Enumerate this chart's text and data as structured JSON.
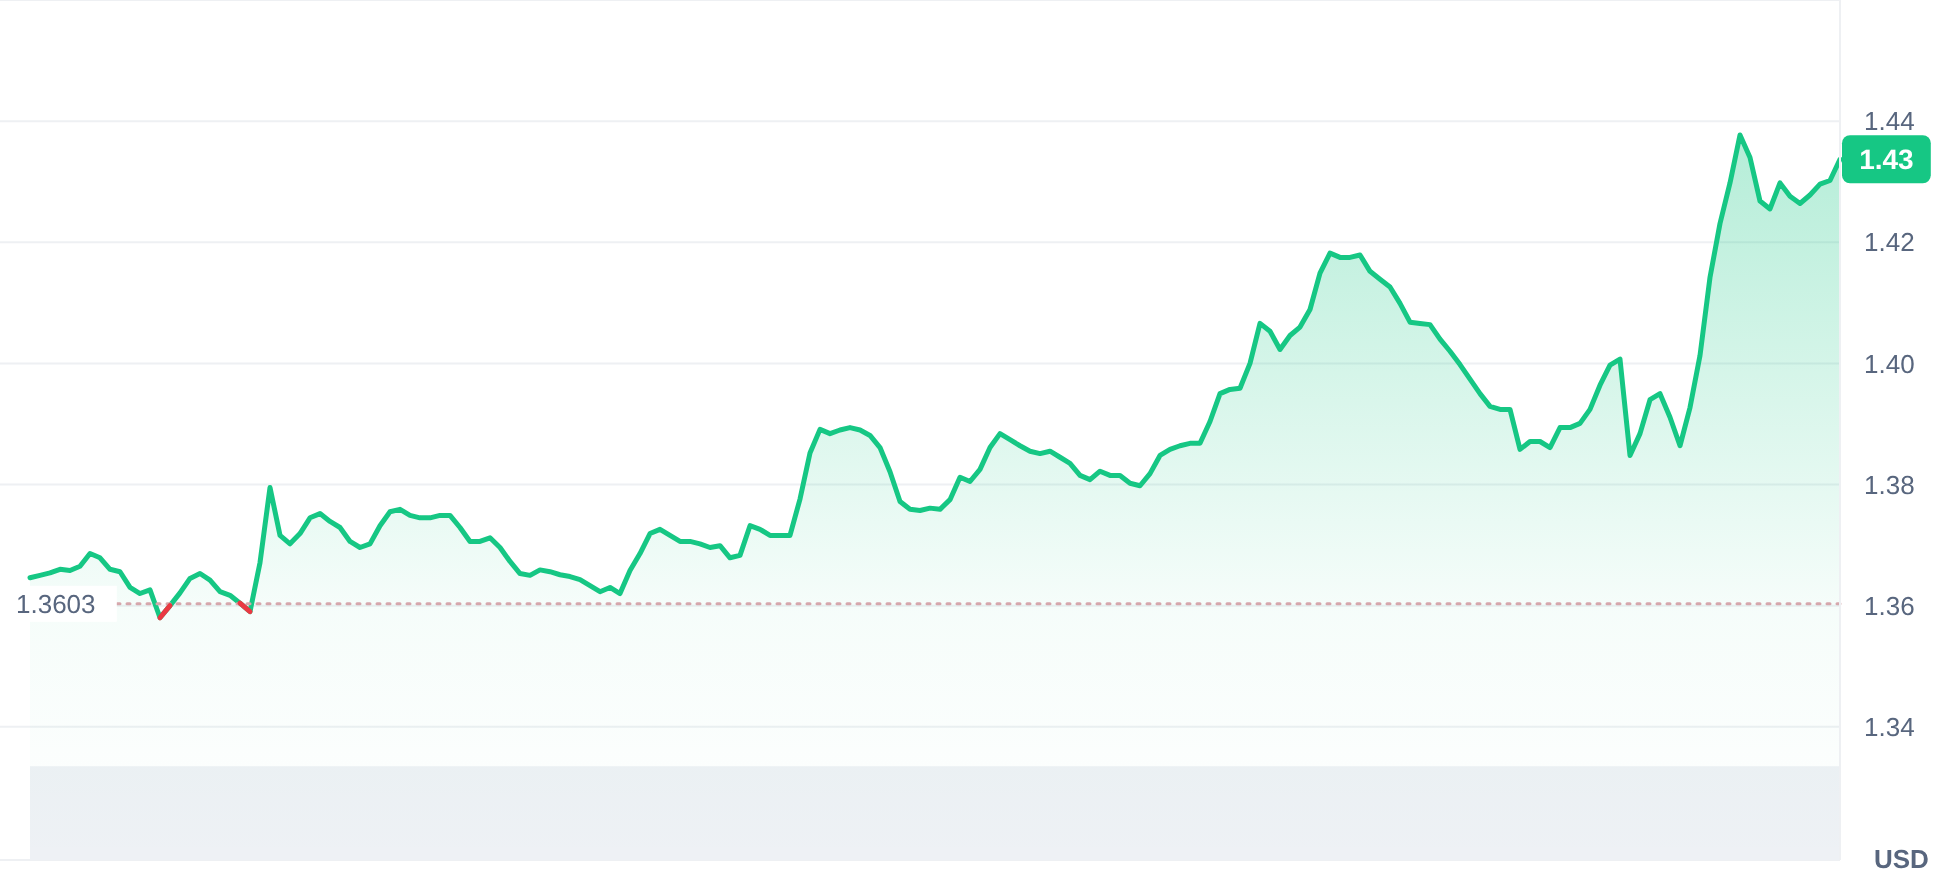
{
  "chart_data": {
    "type": "area",
    "ylabel": "USD",
    "categories": [
      null,
      null,
      null,
      null,
      null,
      null,
      null,
      null,
      null,
      null,
      null,
      null,
      null,
      null,
      null,
      null,
      null,
      null,
      null,
      null,
      null,
      null,
      null,
      null,
      null,
      null,
      null,
      null,
      null,
      null,
      null,
      null,
      null,
      null,
      null,
      null,
      null,
      null,
      null,
      null,
      null,
      null,
      null,
      null,
      null,
      null,
      null,
      null,
      null,
      null,
      null,
      null,
      null,
      null,
      null,
      null,
      null,
      null,
      null,
      null,
      null,
      null,
      null,
      null,
      null,
      null,
      null,
      null,
      null,
      null,
      null,
      null,
      null,
      null,
      null,
      null,
      null,
      null,
      null,
      null,
      null,
      null,
      null,
      null,
      null,
      null,
      null,
      null,
      null,
      null,
      null,
      null,
      null,
      null,
      null,
      null,
      null,
      null,
      null,
      null,
      null,
      null,
      null,
      null,
      null,
      null,
      null,
      null,
      null,
      null,
      null,
      null,
      null,
      null,
      null,
      null,
      null,
      null,
      null,
      null,
      null,
      null,
      null,
      null,
      null,
      null,
      null,
      null,
      null,
      null,
      null,
      null,
      null,
      null,
      null,
      null,
      null,
      null,
      null,
      null,
      null,
      null,
      null,
      null,
      null,
      null,
      null,
      null,
      null,
      null,
      null,
      null,
      null,
      null,
      null,
      null,
      null,
      null,
      null,
      null,
      null,
      null,
      null,
      null,
      null,
      null,
      null,
      null,
      null,
      null,
      null,
      null,
      null,
      null,
      null,
      null,
      null,
      null,
      null,
      null,
      null,
      null
    ],
    "series": [
      {
        "color": "#16c784",
        "values": [
          1.3646,
          1.365,
          1.3654,
          1.366,
          1.3658,
          1.3665,
          1.3686,
          1.3679,
          1.366,
          1.3656,
          1.363,
          1.362,
          1.3626,
          1.358,
          1.36,
          1.3621,
          1.3645,
          1.3653,
          1.3642,
          1.3623,
          1.3617,
          1.3604,
          1.359,
          1.3671,
          1.3795,
          1.3716,
          1.3702,
          1.3719,
          1.3745,
          1.3752,
          1.3739,
          1.3729,
          1.3706,
          1.3696,
          1.3702,
          1.3732,
          1.3755,
          1.3759,
          1.3749,
          1.3745,
          1.3745,
          1.3749,
          1.3749,
          1.3729,
          1.3706,
          1.3706,
          1.3712,
          1.3696,
          1.3673,
          1.3653,
          1.365,
          1.3659,
          1.3656,
          1.3651,
          1.3648,
          1.3643,
          1.3633,
          1.3623,
          1.363,
          1.362,
          1.3658,
          1.3686,
          1.3719,
          1.3726,
          1.3716,
          1.3706,
          1.3706,
          1.3702,
          1.3696,
          1.3699,
          1.3679,
          1.3683,
          1.3732,
          1.3726,
          1.3716,
          1.3716,
          1.3716,
          1.3776,
          1.3852,
          1.3891,
          1.3884,
          1.389,
          1.3894,
          1.389,
          1.3881,
          1.3861,
          1.3821,
          1.3772,
          1.3759,
          1.3757,
          1.3761,
          1.3759,
          1.3775,
          1.3812,
          1.3805,
          1.3825,
          1.3861,
          1.3884,
          1.3874,
          1.3864,
          1.3855,
          1.3851,
          1.3855,
          1.3845,
          1.3835,
          1.3815,
          1.3808,
          1.3822,
          1.3815,
          1.3815,
          1.3802,
          1.3798,
          1.3818,
          1.3848,
          1.3858,
          1.3864,
          1.3868,
          1.3868,
          1.3904,
          1.395,
          1.3957,
          1.3959,
          1.4,
          1.4066,
          1.4053,
          1.4023,
          1.4046,
          1.406,
          1.4089,
          1.4149,
          1.4182,
          1.4175,
          1.4175,
          1.4179,
          1.4152,
          1.4139,
          1.4126,
          1.4099,
          1.4068,
          1.4066,
          1.4064,
          1.404,
          1.402,
          1.3998,
          1.3974,
          1.395,
          1.3929,
          1.3924,
          1.3924,
          1.3858,
          1.3871,
          1.3871,
          1.3861,
          1.3894,
          1.3894,
          1.3901,
          1.3924,
          1.3964,
          1.3997,
          1.4007,
          1.3848,
          1.3884,
          1.394,
          1.395,
          1.3911,
          1.3864,
          1.3927,
          1.4013,
          1.4142,
          1.4231,
          1.4298,
          1.4377,
          1.434,
          1.4268,
          1.4255,
          1.4298,
          1.4276,
          1.4264,
          1.4278,
          1.4296,
          1.4302,
          1.4337
        ],
        "value_labels": [
          null,
          null,
          null,
          null,
          null,
          null,
          null,
          null,
          null,
          null,
          null,
          null,
          null,
          null,
          null,
          null,
          null,
          null,
          null,
          null,
          null,
          null,
          null,
          null,
          null,
          null,
          null,
          null,
          null,
          null,
          null,
          null,
          null,
          null,
          null,
          null,
          null,
          null,
          null,
          null,
          null,
          null,
          null,
          null,
          null,
          null,
          null,
          null,
          null,
          null,
          null,
          null,
          null,
          null,
          null,
          null,
          null,
          null,
          null,
          null,
          null,
          null,
          null,
          null,
          null,
          null,
          null,
          null,
          null,
          null,
          null,
          null,
          null,
          null,
          null,
          null,
          null,
          null,
          null,
          null,
          null,
          null,
          null,
          null,
          null,
          null,
          null,
          null,
          null,
          null,
          null,
          null,
          null,
          null,
          null,
          null,
          null,
          null,
          null,
          null,
          null,
          null,
          null,
          null,
          null,
          null,
          null,
          null,
          null,
          null,
          null,
          null,
          null,
          null,
          null,
          null,
          null,
          null,
          null,
          null,
          null,
          null,
          null,
          null,
          null,
          null,
          null,
          null,
          null,
          null,
          null,
          null,
          null,
          null,
          null,
          null,
          null,
          null,
          null,
          null,
          null,
          null,
          null,
          null,
          null,
          null,
          null,
          null,
          null,
          null,
          null,
          null,
          null,
          null,
          null,
          null,
          null,
          null,
          null,
          null,
          null,
          null,
          null,
          null,
          null,
          null,
          null,
          null,
          null,
          null,
          null,
          null,
          null,
          null,
          null,
          null,
          null,
          null,
          null,
          null,
          null,
          "1.43"
        ]
      },
      {
        "type": "line",
        "color": "#ea3943",
        "values": [
          null,
          null,
          null,
          null,
          null,
          null,
          null,
          null,
          null,
          null,
          null,
          null,
          null,
          1.358,
          1.36,
          null,
          null,
          null,
          null,
          null,
          null,
          1.3604,
          1.359,
          null,
          null,
          null,
          null,
          null,
          null,
          null,
          null,
          null,
          null,
          null,
          null,
          null,
          null,
          null,
          null,
          null,
          null,
          null,
          null,
          null,
          null,
          null,
          null,
          null,
          null,
          null,
          null,
          null,
          null,
          null,
          null,
          null,
          null,
          null,
          null,
          null,
          null,
          null,
          null,
          null,
          null,
          null,
          null,
          null,
          null,
          null,
          null,
          null,
          null,
          null,
          null,
          null,
          null,
          null,
          null,
          null,
          null,
          null,
          null,
          null,
          null,
          null,
          null,
          null,
          null,
          null,
          null,
          null,
          null,
          null,
          null,
          null,
          null,
          null,
          null,
          null,
          null,
          null,
          null,
          null,
          null,
          null,
          null,
          null,
          null,
          null,
          null,
          null,
          null,
          null,
          null,
          null,
          null,
          null,
          null,
          null,
          null,
          null,
          null,
          null,
          null,
          null,
          null,
          null,
          null,
          null,
          null,
          null,
          null,
          null,
          null,
          null,
          null,
          null,
          null,
          null,
          null,
          null,
          null,
          null,
          null,
          null,
          null,
          null,
          null,
          null,
          null,
          null,
          null,
          null,
          null,
          null,
          null,
          null,
          null,
          null,
          null,
          null,
          null,
          null,
          null,
          null,
          null,
          null,
          null,
          null,
          null,
          null,
          null,
          null,
          null,
          null,
          null,
          null,
          null,
          null,
          null,
          null
        ]
      }
    ],
    "ylim": [
      1.318,
      1.46
    ],
    "yticks": [
      {
        "value": 1.34,
        "label": "1.34"
      },
      {
        "value": 1.36,
        "label": "1.36"
      },
      {
        "value": 1.38,
        "label": "1.38"
      },
      {
        "value": 1.4,
        "label": "1.40"
      },
      {
        "value": 1.42,
        "label": "1.42"
      },
      {
        "value": 1.44,
        "label": "1.44"
      }
    ],
    "grid": "y",
    "tick_labels": "y",
    "ref_lines": [
      {
        "axis": "y",
        "value": 1.3603,
        "label": "1.3603",
        "color": "#d6a7ac",
        "line_style": "dotted"
      }
    ],
    "bands": [
      {
        "axis": "y",
        "from": 1.318,
        "to": 1.3335,
        "color": "#eef1f5"
      }
    ]
  }
}
